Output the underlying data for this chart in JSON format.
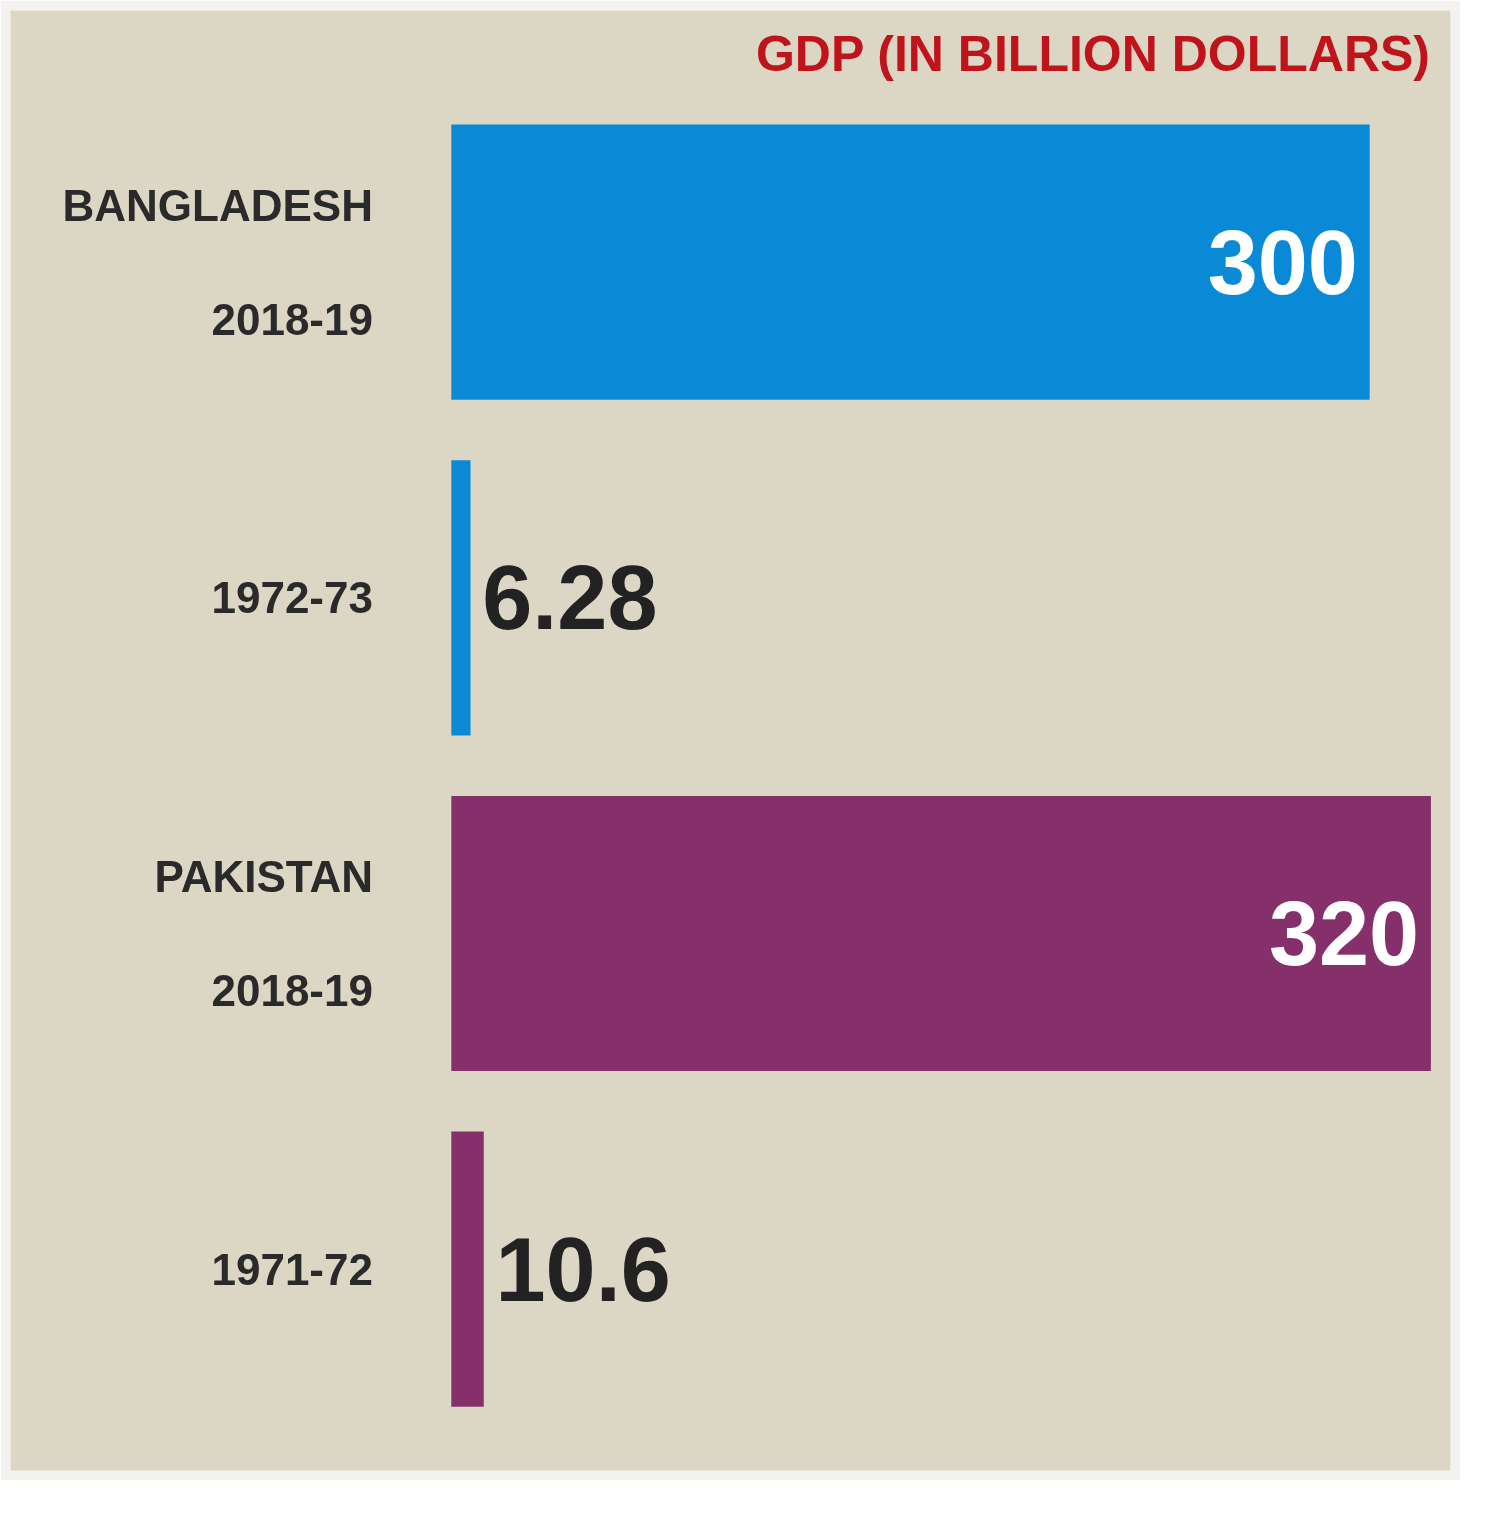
{
  "chart_data": {
    "type": "bar",
    "orientation": "horizontal",
    "title": "GDP (IN BILLION DOLLARS)",
    "categories": [
      "BANGLADESH\n2018-19",
      "1972-73",
      "PAKISTAN\n2018-19",
      "1971-72"
    ],
    "values": [
      300,
      6.28,
      320,
      10.6
    ],
    "colors": [
      "#0a8ad6",
      "#0a8ad6",
      "#86306b",
      "#86306b"
    ],
    "data_labels": true,
    "tick_labels": false
  }
}
